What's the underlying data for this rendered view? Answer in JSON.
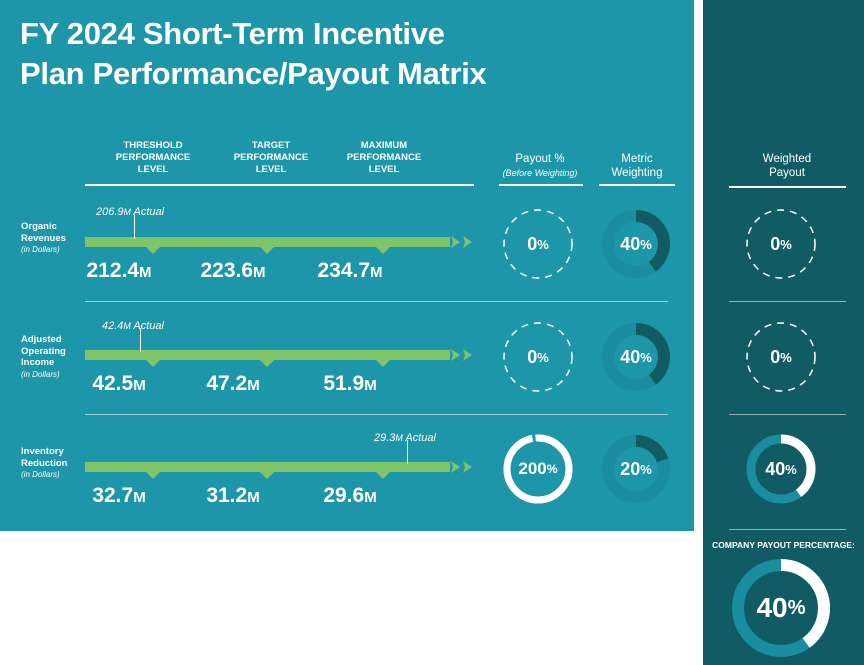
{
  "title_line1": "FY 2024 Short-Term Incentive",
  "title_line2": "Plan Performance/Payout Matrix",
  "columns": {
    "threshold": "THRESHOLD PERFORMANCE LEVEL",
    "target": "TARGET PERFORMANCE LEVEL",
    "maximum": "MAXIMUM PERFORMANCE LEVEL",
    "payout": "Payout %",
    "payout_sub": "(Before Weighting)",
    "weighting": "Metric Weighting",
    "weighted_payout": "Weighted Payout"
  },
  "unit_suffix": "M",
  "company_payout_label": "COMPANY PAYOUT PERCENTAGE:",
  "colors": {
    "main_panel": "#1c96a8",
    "side_panel": "#115c64",
    "track": "#80c46a",
    "ring_fill": "#ffffff",
    "ring_track": "#1a8da0",
    "weight_fill": "#115c64"
  },
  "chart_data": {
    "type": "table",
    "metrics": [
      {
        "name": "Organic Revenues",
        "unit_note": "(in Dollars)",
        "actual": "206.9",
        "actual_text": "Actual",
        "threshold": "212.4",
        "target": "223.6",
        "maximum": "234.7",
        "payout_pct": 0,
        "weighting_pct": 40,
        "weighted_payout_pct": 0
      },
      {
        "name": "Adjusted Operating Income",
        "unit_note": "(in Dollars)",
        "actual": "42.4",
        "actual_text": "Actual",
        "threshold": "42.5",
        "target": "47.2",
        "maximum": "51.9",
        "payout_pct": 0,
        "weighting_pct": 40,
        "weighted_payout_pct": 0
      },
      {
        "name": "Inventory Reduction",
        "unit_note": "(in Dollars)",
        "actual": "29.3",
        "actual_text": "Actual",
        "threshold": "32.7",
        "target": "31.2",
        "maximum": "29.6",
        "payout_pct": 200,
        "weighting_pct": 20,
        "weighted_payout_pct": 40
      }
    ],
    "company_payout_pct": 40
  }
}
